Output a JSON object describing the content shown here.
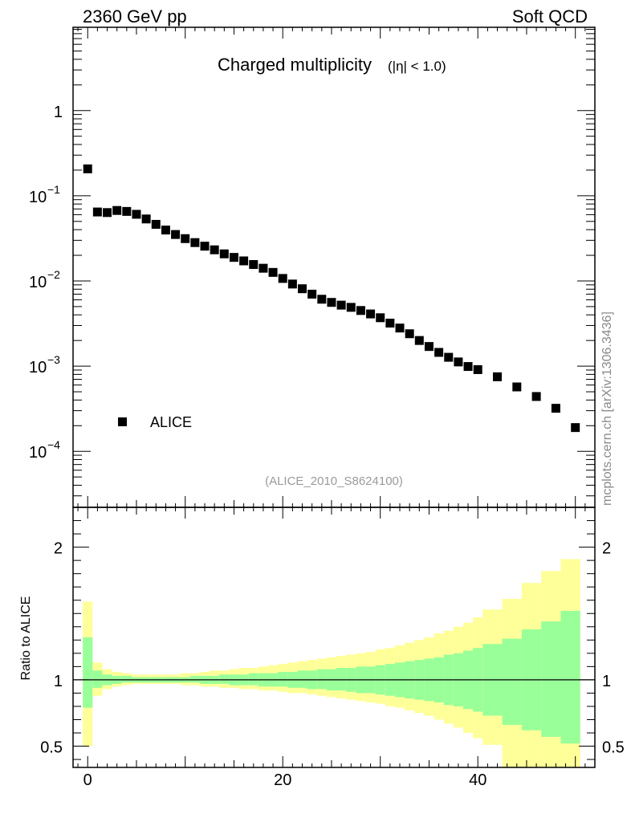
{
  "header": {
    "left": "2360 GeV pp",
    "right": "Soft QCD"
  },
  "side_note": "mcplots.cern.ch [arXiv:1306.3436]",
  "chart_data": [
    {
      "type": "scatter",
      "title": "Charged multiplicity",
      "title_suffix": "(|η| < 1.0)",
      "annotation": "(ALICE_2010_S8624100)",
      "xlim": [
        -1.5,
        52
      ],
      "ylim": [
        2.2e-05,
        9.5
      ],
      "log_y": true,
      "y_ticks": [
        {
          "v": 1,
          "label": "1"
        },
        {
          "v": 0.1,
          "label": "10",
          "exp": "−1"
        },
        {
          "v": 0.01,
          "label": "10",
          "exp": "−2"
        },
        {
          "v": 0.001,
          "label": "10",
          "exp": "−3"
        },
        {
          "v": 0.0001,
          "label": "10",
          "exp": "−4"
        }
      ],
      "legend_placement": "bottom-left",
      "series": [
        {
          "name": "ALICE",
          "color": "#000000",
          "x": [
            0,
            1,
            2,
            3,
            4,
            5,
            6,
            7,
            8,
            9,
            10,
            11,
            12,
            13,
            14,
            15,
            16,
            17,
            18,
            19,
            20,
            21,
            22,
            23,
            24,
            25,
            26,
            27,
            28,
            29,
            30,
            31,
            32,
            33,
            34,
            35,
            36,
            37,
            38,
            39,
            40,
            42,
            44,
            46,
            48,
            50
          ],
          "y": [
            0.207,
            0.0645,
            0.0635,
            0.0672,
            0.0655,
            0.0606,
            0.0534,
            0.0462,
            0.0396,
            0.0351,
            0.0314,
            0.0282,
            0.0256,
            0.0232,
            0.0208,
            0.0189,
            0.0172,
            0.0156,
            0.0141,
            0.0126,
            0.0107,
            0.0092,
            0.0081,
            0.007,
            0.0061,
            0.0056,
            0.0052,
            0.0049,
            0.0045,
            0.0041,
            0.0037,
            0.0032,
            0.0028,
            0.0024,
            0.002,
            0.0017,
            0.00145,
            0.00127,
            0.00112,
            0.00099,
            0.00091,
            0.00075,
            0.00057,
            0.00044,
            0.00032,
            0.00019
          ]
        }
      ]
    },
    {
      "type": "area",
      "ylabel": "Ratio to ALICE",
      "xlim": [
        -1.5,
        52
      ],
      "ylim": [
        0.34,
        2.3
      ],
      "x_ticks": [
        0,
        20,
        40
      ],
      "y_ticks": [
        {
          "v": 0.5,
          "label": "0.5"
        },
        {
          "v": 1,
          "label": "1"
        },
        {
          "v": 2,
          "label": "2"
        }
      ],
      "reference_line": 1,
      "colors": {
        "outer_band": "#ffff99",
        "inner_band": "#99ff99",
        "line": "#000000"
      },
      "bin_edges": [
        -0.5,
        0.5,
        1.5,
        2.5,
        3.5,
        4.5,
        5.5,
        6.5,
        7.5,
        8.5,
        9.5,
        10.5,
        11.5,
        12.5,
        13.5,
        14.5,
        15.5,
        16.5,
        17.5,
        18.5,
        19.5,
        20.5,
        21.5,
        22.5,
        23.5,
        24.5,
        25.5,
        26.5,
        27.5,
        28.5,
        29.5,
        30.5,
        31.5,
        32.5,
        33.5,
        34.5,
        35.5,
        36.5,
        37.5,
        38.5,
        39.5,
        40.5,
        42.5,
        44.5,
        46.5,
        48.5,
        50.5
      ],
      "outer_upper": [
        1.59,
        1.13,
        1.08,
        1.06,
        1.05,
        1.04,
        1.04,
        1.04,
        1.04,
        1.04,
        1.05,
        1.05,
        1.06,
        1.07,
        1.07,
        1.08,
        1.09,
        1.09,
        1.1,
        1.11,
        1.12,
        1.13,
        1.14,
        1.15,
        1.16,
        1.17,
        1.18,
        1.19,
        1.2,
        1.21,
        1.23,
        1.24,
        1.26,
        1.28,
        1.3,
        1.32,
        1.35,
        1.37,
        1.4,
        1.43,
        1.47,
        1.53,
        1.61,
        1.73,
        1.82,
        1.91
      ],
      "outer_lower": [
        0.5,
        0.88,
        0.93,
        0.95,
        0.96,
        0.97,
        0.97,
        0.97,
        0.97,
        0.97,
        0.96,
        0.96,
        0.95,
        0.95,
        0.94,
        0.94,
        0.93,
        0.93,
        0.92,
        0.92,
        0.91,
        0.9,
        0.9,
        0.89,
        0.88,
        0.87,
        0.86,
        0.85,
        0.84,
        0.83,
        0.82,
        0.8,
        0.79,
        0.77,
        0.75,
        0.73,
        0.7,
        0.67,
        0.64,
        0.6,
        0.56,
        0.51,
        0.33,
        0.33,
        0.33,
        0.33
      ],
      "inner_upper": [
        1.32,
        1.07,
        1.04,
        1.03,
        1.03,
        1.02,
        1.02,
        1.02,
        1.02,
        1.02,
        1.02,
        1.03,
        1.03,
        1.03,
        1.04,
        1.04,
        1.04,
        1.05,
        1.05,
        1.05,
        1.06,
        1.06,
        1.07,
        1.07,
        1.08,
        1.08,
        1.09,
        1.09,
        1.1,
        1.1,
        1.11,
        1.12,
        1.13,
        1.14,
        1.15,
        1.16,
        1.17,
        1.19,
        1.2,
        1.22,
        1.24,
        1.27,
        1.31,
        1.38,
        1.44,
        1.52
      ],
      "inner_lower": [
        0.79,
        0.94,
        0.96,
        0.97,
        0.98,
        0.98,
        0.98,
        0.98,
        0.98,
        0.98,
        0.98,
        0.98,
        0.97,
        0.97,
        0.97,
        0.96,
        0.96,
        0.96,
        0.95,
        0.95,
        0.95,
        0.94,
        0.94,
        0.93,
        0.93,
        0.92,
        0.92,
        0.91,
        0.9,
        0.9,
        0.89,
        0.88,
        0.87,
        0.86,
        0.85,
        0.84,
        0.83,
        0.81,
        0.8,
        0.78,
        0.76,
        0.73,
        0.66,
        0.62,
        0.57,
        0.52
      ]
    }
  ]
}
